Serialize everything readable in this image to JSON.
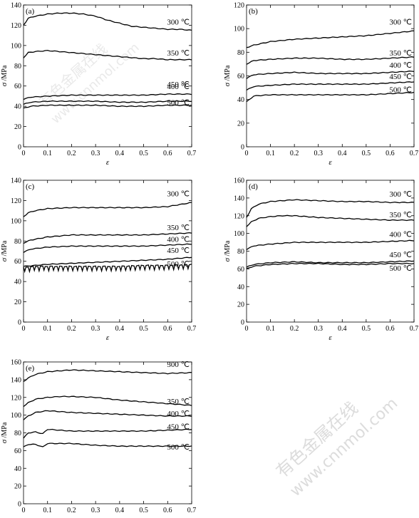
{
  "watermark": {
    "cn": "有色金属在线",
    "url": "www.cnnmol.com"
  },
  "chart_data": [
    {
      "type": "line",
      "panel": "(a)",
      "xlabel": "ε",
      "ylabel_symbol": "σ",
      "ylabel_unit": " /MPa",
      "xlim": [
        0,
        0.7
      ],
      "ylim": [
        0,
        140
      ],
      "xticks": [
        0,
        0.1,
        0.2,
        0.3,
        0.4,
        0.5,
        0.6,
        0.7
      ],
      "yticks": [
        0,
        20,
        40,
        60,
        80,
        100,
        120,
        140
      ],
      "series": [
        {
          "name": "300 ℃",
          "x": [
            0,
            0.02,
            0.05,
            0.1,
            0.15,
            0.2,
            0.25,
            0.3,
            0.35,
            0.4,
            0.45,
            0.5,
            0.55,
            0.6,
            0.65,
            0.7
          ],
          "y": [
            120,
            127,
            129,
            131,
            132,
            132,
            131,
            129,
            125,
            122,
            119,
            118,
            117,
            116,
            116,
            115
          ]
        },
        {
          "name": "350 ℃",
          "x": [
            0,
            0.02,
            0.05,
            0.1,
            0.15,
            0.2,
            0.25,
            0.3,
            0.35,
            0.4,
            0.45,
            0.5,
            0.55,
            0.6,
            0.65,
            0.7
          ],
          "y": [
            88,
            93,
            94,
            95,
            94,
            93,
            92,
            91,
            90,
            89,
            88,
            87,
            87,
            86,
            86,
            86
          ]
        },
        {
          "name": "400 ℃",
          "x": [
            0,
            0.03,
            0.1,
            0.2,
            0.3,
            0.4,
            0.5,
            0.6,
            0.7
          ],
          "y": [
            47,
            49,
            50,
            51,
            51,
            51,
            51,
            52,
            52
          ]
        },
        {
          "name": "450 ℃",
          "x": [
            0,
            0.03,
            0.1,
            0.2,
            0.3,
            0.4,
            0.5,
            0.6,
            0.7
          ],
          "y": [
            42,
            44,
            45,
            45,
            45,
            44,
            44,
            45,
            45
          ]
        },
        {
          "name": "500 ℃",
          "x": [
            0,
            0.03,
            0.1,
            0.2,
            0.3,
            0.4,
            0.5,
            0.6,
            0.7
          ],
          "y": [
            38,
            40,
            41,
            41,
            41,
            40,
            40,
            41,
            41
          ]
        }
      ]
    },
    {
      "type": "line",
      "panel": "(b)",
      "xlabel": "ε",
      "ylabel_symbol": "σ",
      "ylabel_unit": " /MPa",
      "xlim": [
        0,
        0.7
      ],
      "ylim": [
        0,
        120
      ],
      "xticks": [
        0,
        0.1,
        0.2,
        0.3,
        0.4,
        0.5,
        0.6,
        0.7
      ],
      "yticks": [
        0,
        20,
        40,
        60,
        80,
        100,
        120
      ],
      "series": [
        {
          "name": "300 ℃",
          "x": [
            0,
            0.03,
            0.1,
            0.2,
            0.3,
            0.4,
            0.5,
            0.6,
            0.7
          ],
          "y": [
            84,
            86,
            89,
            91,
            92,
            93,
            94,
            96,
            98
          ]
        },
        {
          "name": "350 ℃",
          "x": [
            0,
            0.03,
            0.1,
            0.2,
            0.3,
            0.4,
            0.5,
            0.6,
            0.7
          ],
          "y": [
            70,
            73,
            74,
            75,
            75,
            74,
            74,
            75,
            76
          ]
        },
        {
          "name": "400 ℃",
          "x": [
            0,
            0.03,
            0.1,
            0.2,
            0.3,
            0.4,
            0.5,
            0.6,
            0.7
          ],
          "y": [
            58,
            61,
            62,
            63,
            62,
            62,
            62,
            63,
            64
          ]
        },
        {
          "name": "450 ℃",
          "x": [
            0,
            0.03,
            0.1,
            0.2,
            0.3,
            0.4,
            0.5,
            0.6,
            0.7
          ],
          "y": [
            48,
            51,
            52,
            53,
            53,
            53,
            53,
            54,
            55
          ]
        },
        {
          "name": "500 ℃",
          "x": [
            0,
            0.03,
            0.1,
            0.2,
            0.3,
            0.4,
            0.5,
            0.6,
            0.7
          ],
          "y": [
            38,
            43,
            44,
            44,
            44,
            44,
            44,
            45,
            46
          ]
        }
      ]
    },
    {
      "type": "line",
      "panel": "(c)",
      "xlabel": "ε",
      "ylabel_symbol": "σ",
      "ylabel_unit": " /MPa",
      "xlim": [
        0,
        0.7
      ],
      "ylim": [
        0,
        140
      ],
      "xticks": [
        0,
        0.1,
        0.2,
        0.3,
        0.4,
        0.5,
        0.6,
        0.7
      ],
      "yticks": [
        0,
        20,
        40,
        60,
        80,
        100,
        120,
        140
      ],
      "series": [
        {
          "name": "300 ℃",
          "x": [
            0,
            0.02,
            0.05,
            0.1,
            0.2,
            0.3,
            0.4,
            0.5,
            0.6,
            0.65,
            0.7
          ],
          "y": [
            104,
            108,
            110,
            112,
            113,
            113,
            113,
            113,
            114,
            116,
            118
          ]
        },
        {
          "name": "350 ℃",
          "x": [
            0,
            0.03,
            0.1,
            0.2,
            0.3,
            0.4,
            0.5,
            0.6,
            0.7
          ],
          "y": [
            78,
            81,
            84,
            86,
            86,
            86,
            86,
            87,
            88
          ]
        },
        {
          "name": "400 ℃",
          "x": [
            0,
            0.03,
            0.1,
            0.2,
            0.3,
            0.4,
            0.5,
            0.6,
            0.7
          ],
          "y": [
            69,
            72,
            74,
            75,
            75,
            75,
            75,
            76,
            77
          ]
        },
        {
          "name": "450 ℃",
          "x": [
            0,
            0.05,
            0.1,
            0.2,
            0.3,
            0.4,
            0.5,
            0.6,
            0.7
          ],
          "y": [
            55,
            56,
            57,
            58,
            59,
            60,
            61,
            62,
            64
          ]
        },
        {
          "name": "500 ℃",
          "x": [
            0,
            0.05,
            0.1,
            0.2,
            0.3,
            0.4,
            0.5,
            0.6,
            0.7
          ],
          "y": [
            54,
            55,
            55,
            55,
            55,
            55,
            56,
            56,
            57
          ],
          "serrated": true
        }
      ]
    },
    {
      "type": "line",
      "panel": "(d)",
      "xlabel": "ε",
      "ylabel_symbol": "σ",
      "ylabel_unit": " /MPa",
      "xlim": [
        0,
        0.7
      ],
      "ylim": [
        0,
        160
      ],
      "xticks": [
        0,
        0.1,
        0.2,
        0.3,
        0.4,
        0.5,
        0.6,
        0.7
      ],
      "yticks": [
        0,
        20,
        40,
        60,
        80,
        100,
        120,
        140,
        160
      ],
      "series": [
        {
          "name": "300 ℃",
          "x": [
            0,
            0.02,
            0.05,
            0.1,
            0.15,
            0.2,
            0.3,
            0.4,
            0.5,
            0.6,
            0.7
          ],
          "y": [
            118,
            128,
            133,
            136,
            137,
            138,
            137,
            136,
            136,
            135,
            135
          ]
        },
        {
          "name": "350 ℃",
          "x": [
            0,
            0.02,
            0.05,
            0.1,
            0.15,
            0.2,
            0.3,
            0.4,
            0.5,
            0.6,
            0.7
          ],
          "y": [
            108,
            113,
            117,
            119,
            120,
            120,
            118,
            117,
            116,
            115,
            115
          ]
        },
        {
          "name": "400 ℃",
          "x": [
            0,
            0.03,
            0.1,
            0.2,
            0.3,
            0.4,
            0.5,
            0.6,
            0.7
          ],
          "y": [
            82,
            86,
            88,
            90,
            90,
            90,
            90,
            91,
            92
          ]
        },
        {
          "name": "450 ℃",
          "x": [
            0,
            0.03,
            0.1,
            0.2,
            0.3,
            0.4,
            0.5,
            0.6,
            0.7
          ],
          "y": [
            62,
            65,
            67,
            68,
            67,
            67,
            67,
            68,
            69
          ]
        },
        {
          "name": "500 ℃",
          "x": [
            0,
            0.03,
            0.1,
            0.2,
            0.3,
            0.4,
            0.5,
            0.6,
            0.7
          ],
          "y": [
            60,
            63,
            65,
            66,
            66,
            65,
            65,
            66,
            66
          ]
        }
      ]
    },
    {
      "type": "line",
      "panel": "(e)",
      "xlabel": "ε",
      "ylabel_symbol": "σ",
      "ylabel_unit": " /MPa",
      "xlim": [
        0,
        0.7
      ],
      "ylim": [
        0,
        160
      ],
      "xticks": [
        0,
        0.1,
        0.2,
        0.3,
        0.4,
        0.5,
        0.6,
        0.7
      ],
      "yticks": [
        0,
        20,
        40,
        60,
        80,
        100,
        120,
        140,
        160
      ],
      "series": [
        {
          "name": "300 ℃",
          "x": [
            0,
            0.02,
            0.05,
            0.1,
            0.15,
            0.2,
            0.3,
            0.4,
            0.5,
            0.6,
            0.7
          ],
          "y": [
            138,
            142,
            146,
            149,
            150,
            151,
            150,
            149,
            148,
            147,
            148
          ]
        },
        {
          "name": "350 ℃",
          "x": [
            0,
            0.02,
            0.05,
            0.1,
            0.15,
            0.2,
            0.3,
            0.4,
            0.5,
            0.6,
            0.7
          ],
          "y": [
            110,
            114,
            118,
            120,
            121,
            121,
            120,
            117,
            115,
            113,
            111
          ]
        },
        {
          "name": "400 ℃",
          "x": [
            0,
            0.02,
            0.05,
            0.1,
            0.15,
            0.2,
            0.3,
            0.4,
            0.5,
            0.6,
            0.7
          ],
          "y": [
            95,
            99,
            103,
            105,
            104,
            103,
            102,
            101,
            100,
            99,
            99
          ]
        },
        {
          "name": "450 ℃",
          "x": [
            0,
            0.02,
            0.05,
            0.08,
            0.1,
            0.15,
            0.2,
            0.3,
            0.4,
            0.5,
            0.6,
            0.7
          ],
          "y": [
            74,
            80,
            81,
            79,
            84,
            83,
            82,
            82,
            82,
            82,
            83,
            84
          ]
        },
        {
          "name": "500 ℃",
          "x": [
            0,
            0.02,
            0.05,
            0.08,
            0.1,
            0.15,
            0.2,
            0.3,
            0.4,
            0.5,
            0.6,
            0.7
          ],
          "y": [
            64,
            67,
            67,
            64,
            68,
            68,
            68,
            66,
            65,
            65,
            65,
            65
          ]
        }
      ]
    }
  ]
}
